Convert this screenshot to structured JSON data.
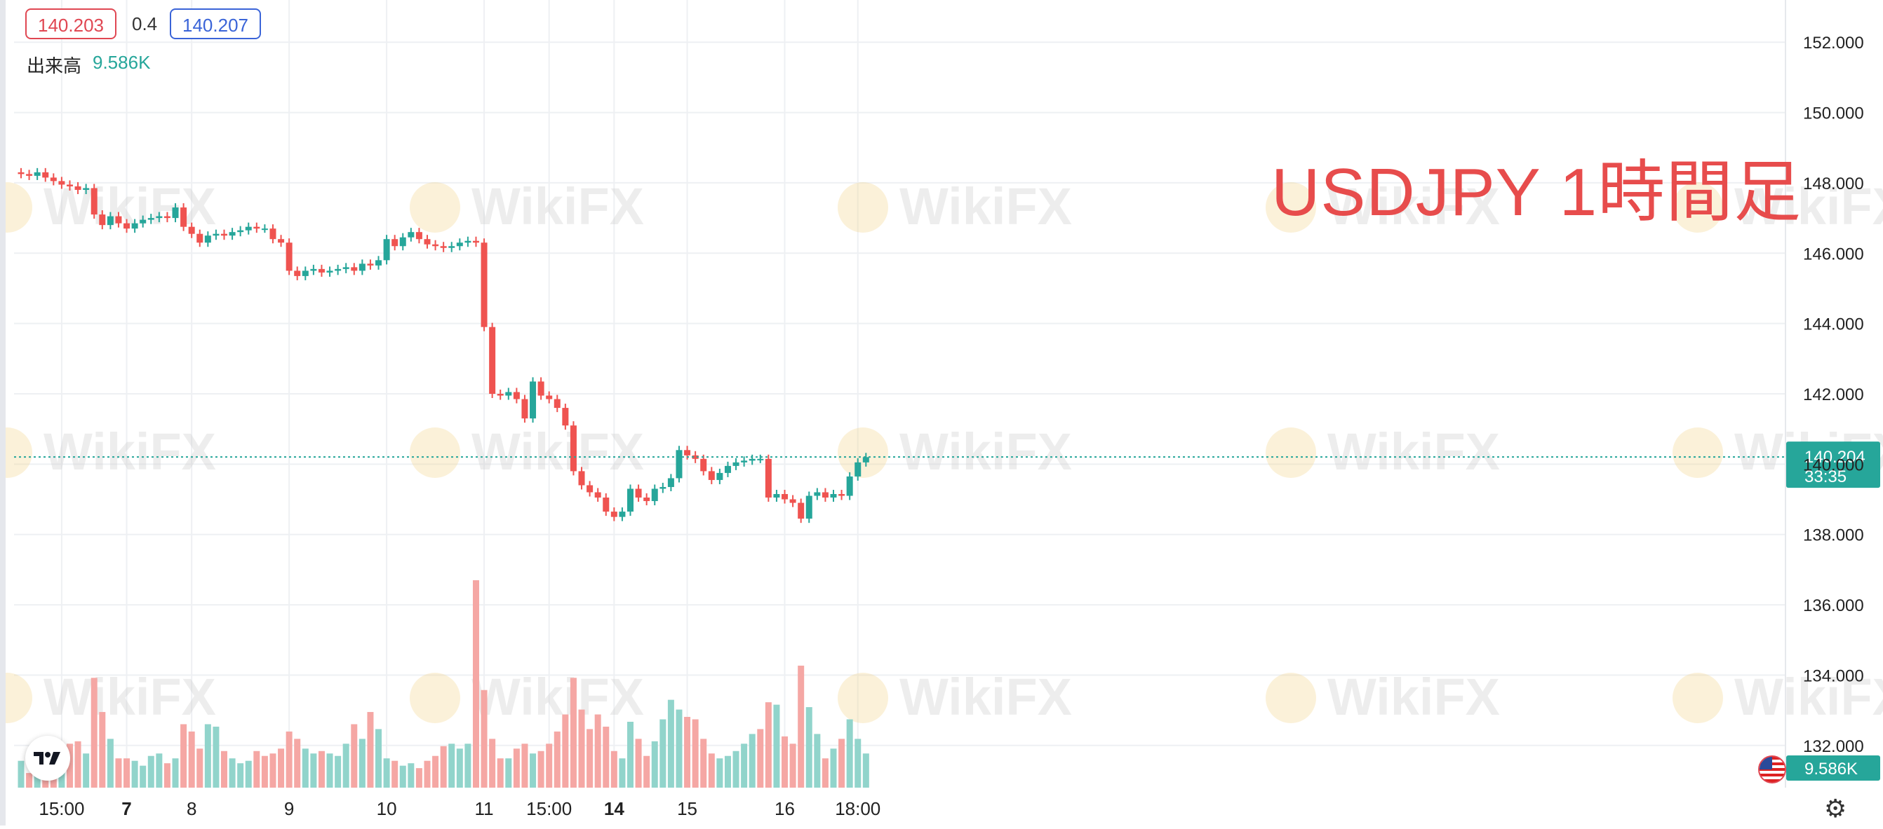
{
  "header": {
    "bid": "140.203",
    "spread": "0.4",
    "ask": "140.207",
    "volume_label": "出来高",
    "volume_value": "9.586K"
  },
  "annotation": "USDJPY 1時間足",
  "watermark": "WikiFX",
  "settings_icon": "gear-icon",
  "colors": {
    "up": "#26a69a",
    "down": "#ef5350",
    "up_volume": "#91d4cb",
    "down_volume": "#f5a7a4",
    "annotation": "#e74c4c",
    "grid": "#eef0f3"
  },
  "chart_data": {
    "type": "candlestick",
    "symbol": "USDJPY",
    "timeframe": "1時間足",
    "y_axis": {
      "range": [
        130.8,
        153.2
      ],
      "ticks": [
        "152.000",
        "150.000",
        "148.000",
        "146.000",
        "144.000",
        "142.000",
        "140.000",
        "138.000",
        "136.000",
        "134.000",
        "132.000"
      ]
    },
    "x_axis": {
      "labels": [
        {
          "text": "15:00",
          "index": 5,
          "bold": false
        },
        {
          "text": "7",
          "index": 13,
          "bold": true
        },
        {
          "text": "8",
          "index": 21,
          "bold": false
        },
        {
          "text": "9",
          "index": 33,
          "bold": false
        },
        {
          "text": "10",
          "index": 45,
          "bold": false
        },
        {
          "text": "11",
          "index": 57,
          "bold": false
        },
        {
          "text": "15:00",
          "index": 65,
          "bold": false
        },
        {
          "text": "14",
          "index": 73,
          "bold": true
        },
        {
          "text": "15",
          "index": 82,
          "bold": false
        },
        {
          "text": "16",
          "index": 94,
          "bold": false
        },
        {
          "text": "18:00",
          "index": 103,
          "bold": false
        }
      ]
    },
    "current_price": "140.204",
    "countdown": "33:35",
    "last_volume": "9.586K",
    "watermark": "WikiFX",
    "closes": [
      148.25,
      148.2,
      148.3,
      148.15,
      148.05,
      147.95,
      147.9,
      147.8,
      147.85,
      147.1,
      146.8,
      147.05,
      146.85,
      146.7,
      146.85,
      146.95,
      147.0,
      147.05,
      147.0,
      147.3,
      146.75,
      146.55,
      146.3,
      146.5,
      146.55,
      146.5,
      146.6,
      146.65,
      146.75,
      146.7,
      146.7,
      146.4,
      146.3,
      145.5,
      145.35,
      145.5,
      145.55,
      145.45,
      145.5,
      145.55,
      145.6,
      145.5,
      145.7,
      145.65,
      145.8,
      146.4,
      146.2,
      146.45,
      146.6,
      146.4,
      146.25,
      146.2,
      146.15,
      146.2,
      146.3,
      146.35,
      146.3,
      143.9,
      142.0,
      141.95,
      142.05,
      141.85,
      141.3,
      142.35,
      141.95,
      141.85,
      141.6,
      141.1,
      139.8,
      139.4,
      139.2,
      139.05,
      138.65,
      138.5,
      138.65,
      139.3,
      139.05,
      138.95,
      139.3,
      139.35,
      139.6,
      140.4,
      140.25,
      140.15,
      139.8,
      139.55,
      139.75,
      139.95,
      140.05,
      140.1,
      140.15,
      140.15,
      139.05,
      139.15,
      139.0,
      138.9,
      138.45,
      139.1,
      139.2,
      139.05,
      139.15,
      139.1,
      139.65,
      140.05,
      140.2
    ],
    "volumes": [
      22,
      12,
      20,
      16,
      26,
      28,
      36,
      38,
      28,
      90,
      62,
      40,
      24,
      24,
      22,
      18,
      26,
      28,
      20,
      24,
      52,
      46,
      32,
      52,
      50,
      30,
      24,
      20,
      22,
      30,
      26,
      28,
      32,
      46,
      40,
      32,
      28,
      30,
      28,
      26,
      36,
      52,
      40,
      62,
      48,
      24,
      22,
      18,
      20,
      16,
      22,
      26,
      34,
      36,
      32,
      36,
      170,
      80,
      40,
      24,
      24,
      32,
      36,
      28,
      30,
      36,
      46,
      60,
      90,
      64,
      48,
      60,
      50,
      30,
      24,
      54,
      40,
      26,
      38,
      56,
      72,
      64,
      58,
      56,
      40,
      28,
      24,
      26,
      30,
      36,
      44,
      48,
      70,
      68,
      42,
      36,
      100,
      66,
      44,
      24,
      32,
      40,
      56,
      40,
      28
    ],
    "volume_up": [
      true,
      false,
      true,
      false,
      false,
      true,
      false,
      false,
      true,
      false,
      false,
      true,
      false,
      false,
      true,
      true,
      true,
      true,
      false,
      true,
      false,
      false,
      false,
      true,
      true,
      false,
      true,
      true,
      true,
      false,
      false,
      false,
      false,
      false,
      false,
      true,
      true,
      false,
      true,
      true,
      true,
      false,
      true,
      false,
      true,
      true,
      false,
      true,
      true,
      false,
      false,
      false,
      false,
      true,
      true,
      true,
      false,
      false,
      false,
      false,
      true,
      false,
      false,
      true,
      false,
      false,
      false,
      false,
      false,
      false,
      false,
      false,
      false,
      false,
      true,
      true,
      false,
      false,
      true,
      true,
      true,
      true,
      false,
      false,
      false,
      false,
      true,
      true,
      true,
      true,
      true,
      false,
      false,
      true,
      false,
      false,
      false,
      true,
      true,
      false,
      true,
      false,
      true,
      true,
      true
    ]
  }
}
